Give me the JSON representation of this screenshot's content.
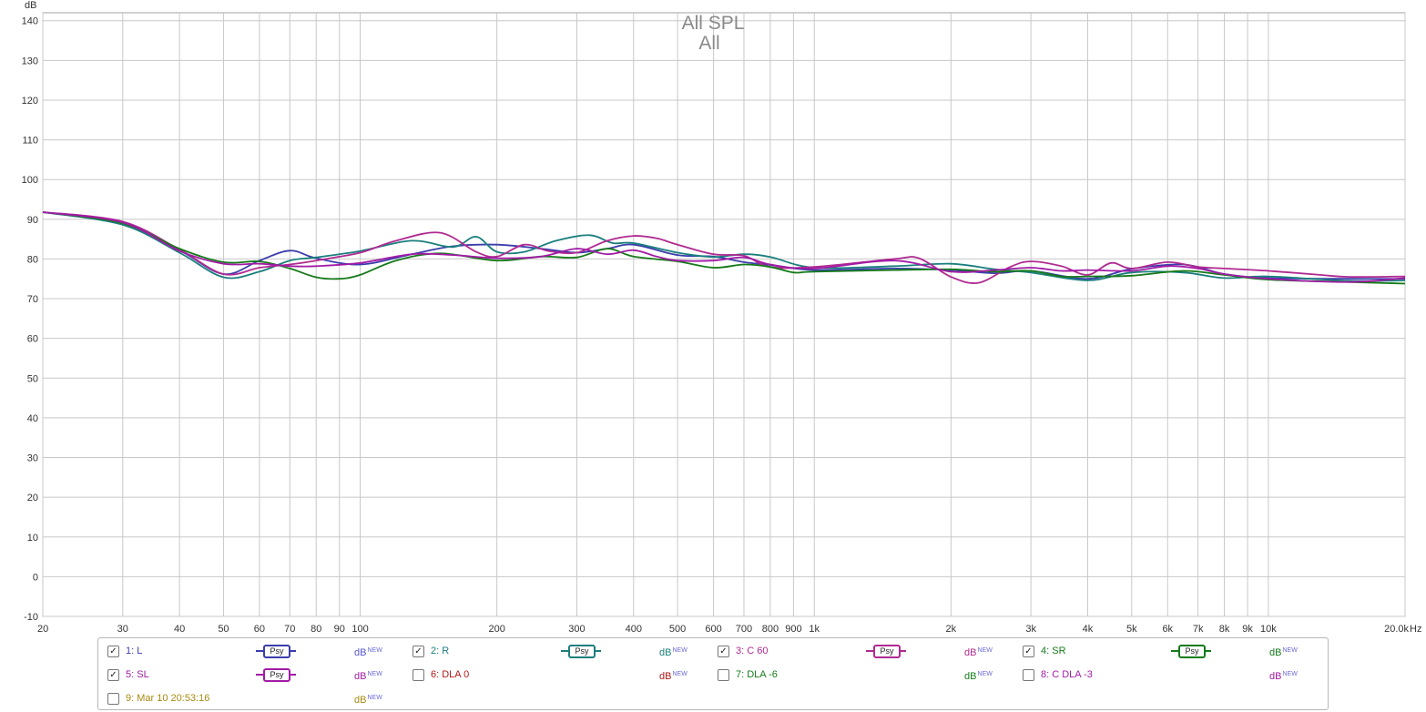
{
  "chart_data": {
    "type": "line",
    "title": "All SPL",
    "subtitle": "All",
    "ylabel": "dB",
    "xlabel": "Hz",
    "x_scale": "log",
    "xlim": [
      20,
      20000
    ],
    "ylim": [
      -10,
      142
    ],
    "grid": true,
    "y_ticks": [
      "-10",
      "0",
      "10",
      "20",
      "30",
      "40",
      "50",
      "60",
      "70",
      "80",
      "90",
      "100",
      "110",
      "120",
      "130",
      "140"
    ],
    "x_ticks": [
      {
        "v": 20,
        "t": "20"
      },
      {
        "v": 30,
        "t": "30"
      },
      {
        "v": 40,
        "t": "40"
      },
      {
        "v": 50,
        "t": "50"
      },
      {
        "v": 60,
        "t": "60"
      },
      {
        "v": 70,
        "t": "70"
      },
      {
        "v": 80,
        "t": "80"
      },
      {
        "v": 90,
        "t": "90"
      },
      {
        "v": 100,
        "t": "100"
      },
      {
        "v": 200,
        "t": "200"
      },
      {
        "v": 300,
        "t": "300"
      },
      {
        "v": 400,
        "t": "400"
      },
      {
        "v": 500,
        "t": "500"
      },
      {
        "v": 600,
        "t": "600"
      },
      {
        "v": 700,
        "t": "700"
      },
      {
        "v": 800,
        "t": "800"
      },
      {
        "v": 900,
        "t": "900"
      },
      {
        "v": 1000,
        "t": "1k"
      },
      {
        "v": 2000,
        "t": "2k"
      },
      {
        "v": 3000,
        "t": "3k"
      },
      {
        "v": 4000,
        "t": "4k"
      },
      {
        "v": 5000,
        "t": "5k"
      },
      {
        "v": 6000,
        "t": "6k"
      },
      {
        "v": 7000,
        "t": "7k"
      },
      {
        "v": 8000,
        "t": "8k"
      },
      {
        "v": 9000,
        "t": "9k"
      },
      {
        "v": 10000,
        "t": "10k"
      },
      {
        "v": 20000,
        "t": "20.0k"
      }
    ],
    "x_unit_label": "Hz",
    "series": [
      {
        "name": "1: L",
        "color": "#3b3dab",
        "x": [
          20,
          30,
          40,
          50,
          60,
          70,
          80,
          100,
          130,
          160,
          200,
          250,
          300,
          350,
          400,
          500,
          600,
          700,
          800,
          1000,
          1500,
          2000,
          2500,
          3000,
          4000,
          5000,
          6500,
          8000,
          10000,
          15000,
          20000
        ],
        "y": [
          91.8,
          88.8,
          82.2,
          76.2,
          79.6,
          82.1,
          80.2,
          78.6,
          81.2,
          83.2,
          83.6,
          82.6,
          81.6,
          82.6,
          83.6,
          81.0,
          80.6,
          79.2,
          78.5,
          77.2,
          77.6,
          77.2,
          76.4,
          77.0,
          75.0,
          77.5,
          78.6,
          76.2,
          75.2,
          75.0,
          75.0
        ]
      },
      {
        "name": "2: R",
        "color": "#1a7f7d",
        "x": [
          20,
          30,
          40,
          50,
          60,
          70,
          80,
          100,
          130,
          160,
          180,
          200,
          230,
          270,
          320,
          360,
          400,
          500,
          600,
          700,
          800,
          1000,
          1500,
          2000,
          2500,
          3000,
          4000,
          5000,
          6500,
          8000,
          10000,
          15000,
          20000
        ],
        "y": [
          91.8,
          88.6,
          81.6,
          75.4,
          76.8,
          79.6,
          80.4,
          82.0,
          84.6,
          83.0,
          85.6,
          81.8,
          81.8,
          84.6,
          86.0,
          84.0,
          84.0,
          81.6,
          80.5,
          81.2,
          80.5,
          77.8,
          78.2,
          78.8,
          77.4,
          76.6,
          74.6,
          76.6,
          76.6,
          75.2,
          75.6,
          74.5,
          74.6
        ]
      },
      {
        "name": "3: C 60",
        "color": "#b02a91",
        "x": [
          20,
          30,
          40,
          50,
          60,
          70,
          80,
          100,
          120,
          150,
          180,
          200,
          230,
          260,
          300,
          350,
          400,
          450,
          500,
          600,
          700,
          800,
          1000,
          1500,
          1700,
          2000,
          2300,
          2700,
          3000,
          3500,
          4000,
          4500,
          5000,
          6000,
          7000,
          8000,
          10000,
          13000,
          15000,
          20000
        ],
        "y": [
          91.8,
          89.4,
          82.4,
          76.2,
          77.8,
          78.6,
          79.6,
          81.6,
          84.6,
          86.6,
          81.8,
          80.6,
          83.6,
          82.0,
          81.6,
          84.6,
          85.8,
          85.2,
          83.6,
          81.2,
          80.8,
          78.0,
          78.0,
          80.0,
          80.2,
          75.5,
          74.0,
          78.0,
          79.4,
          78.2,
          76.0,
          79.0,
          77.6,
          79.2,
          78.0,
          77.6,
          77.0,
          76.0,
          75.5,
          75.6
        ]
      },
      {
        "name": "4: SR",
        "color": "#157a19",
        "x": [
          20,
          30,
          40,
          50,
          60,
          70,
          80,
          90,
          100,
          120,
          150,
          200,
          250,
          300,
          350,
          400,
          500,
          600,
          700,
          800,
          900,
          1000,
          1500,
          2000,
          2500,
          3000,
          3500,
          4000,
          5000,
          6500,
          8000,
          10000,
          15000,
          20000
        ],
        "y": [
          91.8,
          89.0,
          82.6,
          79.2,
          79.4,
          77.6,
          75.4,
          75.0,
          76.0,
          79.6,
          81.4,
          79.6,
          80.6,
          80.4,
          82.6,
          80.6,
          79.4,
          77.8,
          78.6,
          78.0,
          76.6,
          76.8,
          77.2,
          77.4,
          76.8,
          77.0,
          75.6,
          75.6,
          75.8,
          77.0,
          76.0,
          74.8,
          74.2,
          73.8
        ]
      },
      {
        "name": "5: SL",
        "color": "#a21ba6",
        "x": [
          20,
          30,
          40,
          50,
          60,
          70,
          80,
          100,
          130,
          160,
          200,
          250,
          300,
          350,
          400,
          450,
          500,
          600,
          700,
          800,
          1000,
          1500,
          2000,
          2500,
          3000,
          3500,
          4000,
          5000,
          6000,
          7000,
          8000,
          10000,
          15000,
          20000
        ],
        "y": [
          91.8,
          89.2,
          82.0,
          78.8,
          78.8,
          78.2,
          78.2,
          79.0,
          81.2,
          81.0,
          80.2,
          80.6,
          82.6,
          81.2,
          82.2,
          80.6,
          79.6,
          79.6,
          80.4,
          78.6,
          77.6,
          79.6,
          76.8,
          77.2,
          77.8,
          77.0,
          77.2,
          77.0,
          78.2,
          77.6,
          76.2,
          75.0,
          74.2,
          75.2
        ]
      }
    ]
  },
  "legend": {
    "items": [
      {
        "label": "1: L",
        "checked": true,
        "color": "#3b3dab",
        "psy": "Psy",
        "db": "dB",
        "db_sup": "NEW",
        "db_color": "#5557d0"
      },
      {
        "label": "2: R",
        "checked": true,
        "color": "#1a7f7d",
        "psy": "Psy",
        "db": "dB",
        "db_sup": "NEW",
        "db_color": "#1a7f7d"
      },
      {
        "label": "3: C 60",
        "checked": true,
        "color": "#b02a91",
        "psy": "Psy",
        "db": "dB",
        "db_sup": "NEW",
        "db_color": "#b02a91"
      },
      {
        "label": "4: SR",
        "checked": true,
        "color": "#157a19",
        "psy": "Psy",
        "db": "dB",
        "db_sup": "NEW",
        "db_color": "#157a19"
      },
      {
        "label": "5: SL",
        "checked": true,
        "color": "#a21ba6",
        "psy": "Psy",
        "db": "dB",
        "db_sup": "NEW",
        "db_color": "#a21ba6"
      },
      {
        "label": "6: DLA 0",
        "checked": false,
        "color": "#b01818",
        "psy": "",
        "db": "dB",
        "db_sup": "NEW",
        "db_color": "#b01818"
      },
      {
        "label": "7: DLA -6",
        "checked": false,
        "color": "#157a19",
        "psy": "",
        "db": "dB",
        "db_sup": "NEW",
        "db_color": "#157a19"
      },
      {
        "label": "8: C DLA -3",
        "checked": false,
        "color": "#a21ba6",
        "psy": "",
        "db": "dB",
        "db_sup": "NEW",
        "db_color": "#a21ba6"
      },
      {
        "label": "9: Mar 10 20:53:16",
        "checked": false,
        "color": "#a88a10",
        "psy": "",
        "db": "dB",
        "db_sup": "NEW",
        "db_color": "#a88a10"
      }
    ]
  }
}
